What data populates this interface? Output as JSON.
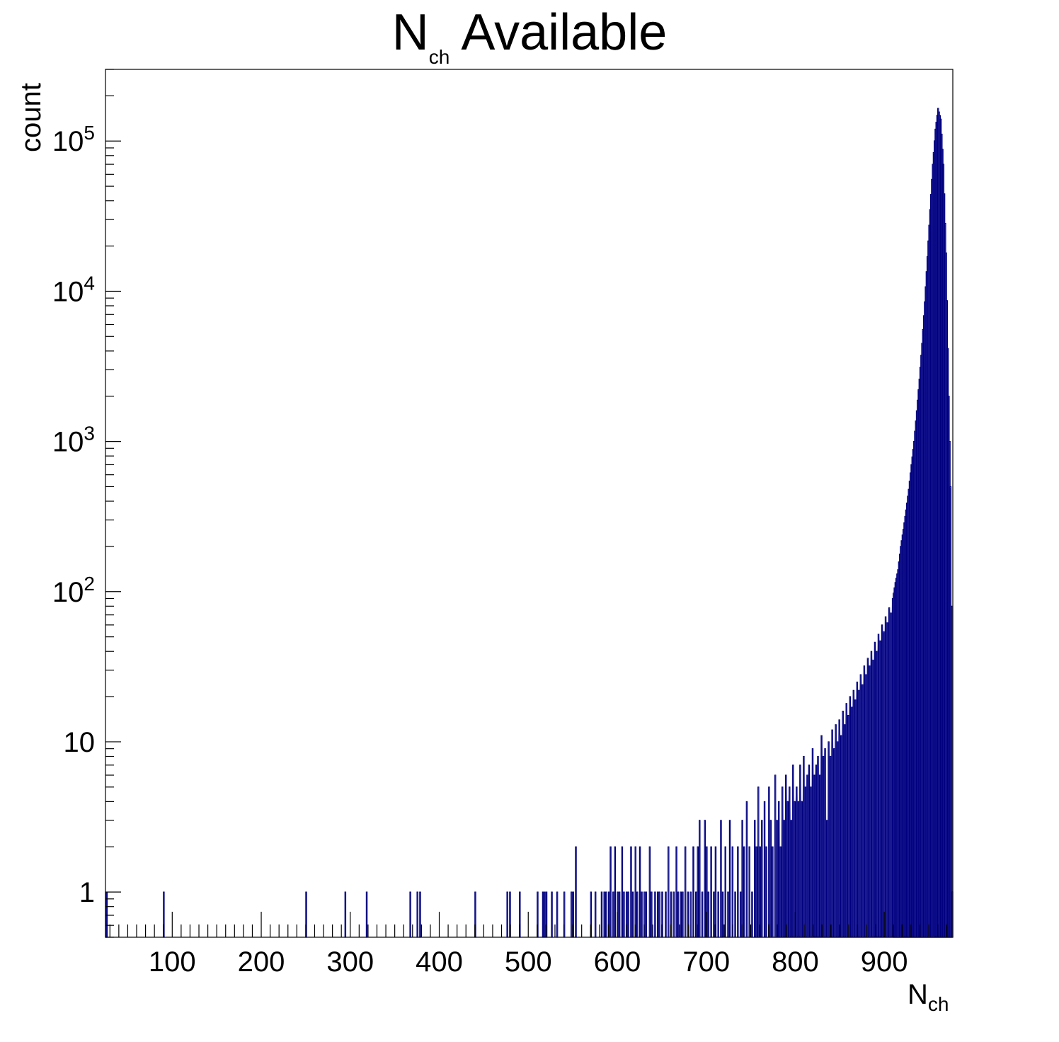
{
  "chart_data": {
    "type": "bar",
    "title": {
      "main": "N",
      "sub": "ch",
      "rest": " Available"
    },
    "xlabel": {
      "main": "N",
      "sub": "ch"
    },
    "ylabel": "count",
    "yscale": "log",
    "xlim": [
      25,
      977
    ],
    "ylim": [
      0.5,
      300000
    ],
    "x_ticks": [
      100,
      200,
      300,
      400,
      500,
      600,
      700,
      800,
      900
    ],
    "y_ticks": [
      {
        "value": 1,
        "base": "1",
        "exp": ""
      },
      {
        "value": 10,
        "base": "10",
        "exp": ""
      },
      {
        "value": 100,
        "base": "10",
        "exp": "2"
      },
      {
        "value": 1000,
        "base": "10",
        "exp": "3"
      },
      {
        "value": 10000,
        "base": "10",
        "exp": "4"
      },
      {
        "value": 100000,
        "base": "10",
        "exp": "5"
      }
    ],
    "colors": {
      "line": "#000080",
      "fill": "#ccccff"
    },
    "sparse_bins": [
      [
        25,
        1
      ],
      [
        26,
        1
      ],
      [
        90,
        1
      ],
      [
        250,
        1
      ],
      [
        294,
        1
      ],
      [
        318,
        1
      ],
      [
        367,
        1
      ],
      [
        375,
        1
      ],
      [
        378,
        1
      ],
      [
        440,
        1
      ],
      [
        476,
        1
      ],
      [
        479,
        1
      ],
      [
        490,
        1
      ],
      [
        510,
        1
      ],
      [
        516,
        1
      ],
      [
        518,
        1
      ],
      [
        520,
        1
      ],
      [
        526,
        1
      ],
      [
        532,
        1
      ],
      [
        540,
        1
      ],
      [
        548,
        1
      ],
      [
        550,
        1
      ],
      [
        553,
        2
      ],
      [
        570,
        1
      ],
      [
        575,
        1
      ],
      [
        582,
        1
      ],
      [
        585,
        1
      ],
      [
        587,
        1
      ],
      [
        590,
        1
      ],
      [
        592,
        2
      ],
      [
        595,
        1
      ],
      [
        597,
        2
      ],
      [
        600,
        1
      ],
      [
        602,
        1
      ],
      [
        605,
        2
      ],
      [
        607,
        1
      ],
      [
        610,
        1
      ],
      [
        612,
        1
      ],
      [
        615,
        2
      ],
      [
        617,
        1
      ],
      [
        620,
        2
      ],
      [
        622,
        1
      ],
      [
        625,
        2
      ],
      [
        627,
        1
      ],
      [
        630,
        1
      ],
      [
        632,
        1
      ],
      [
        636,
        2
      ],
      [
        638,
        1
      ],
      [
        642,
        1
      ],
      [
        645,
        1
      ],
      [
        647,
        1
      ],
      [
        650,
        1
      ],
      [
        654,
        1
      ],
      [
        657,
        2
      ],
      [
        660,
        1
      ],
      [
        663,
        1
      ],
      [
        666,
        2
      ],
      [
        668,
        1
      ],
      [
        671,
        1
      ],
      [
        673,
        1
      ],
      [
        676,
        2
      ],
      [
        679,
        1
      ],
      [
        682,
        1
      ],
      [
        685,
        2
      ],
      [
        688,
        1
      ],
      [
        690,
        2
      ],
      [
        692,
        3
      ],
      [
        695,
        1
      ],
      [
        698,
        3
      ],
      [
        700,
        2
      ],
      [
        702,
        1
      ],
      [
        705,
        2
      ],
      [
        708,
        1
      ],
      [
        710,
        2
      ],
      [
        713,
        1
      ],
      [
        716,
        3
      ],
      [
        718,
        1
      ],
      [
        721,
        2
      ],
      [
        724,
        1
      ],
      [
        726,
        3
      ],
      [
        729,
        2
      ],
      [
        732,
        1
      ],
      [
        735,
        2
      ],
      [
        738,
        1
      ],
      [
        740,
        3
      ],
      [
        742,
        2
      ],
      [
        745,
        4
      ],
      [
        748,
        2
      ],
      [
        751,
        1
      ],
      [
        754,
        3
      ],
      [
        756,
        2
      ],
      [
        758,
        5
      ],
      [
        760,
        2
      ],
      [
        762,
        3
      ],
      [
        765,
        4
      ],
      [
        767,
        2
      ],
      [
        770,
        5
      ],
      [
        772,
        3
      ],
      [
        774,
        2
      ],
      [
        777,
        6
      ],
      [
        779,
        3
      ],
      [
        781,
        4
      ],
      [
        783,
        2
      ],
      [
        785,
        5
      ],
      [
        787,
        3
      ],
      [
        789,
        6
      ],
      [
        791,
        4
      ],
      [
        793,
        5
      ],
      [
        795,
        3
      ],
      [
        797,
        7
      ],
      [
        799,
        4
      ],
      [
        801,
        5
      ],
      [
        803,
        4
      ],
      [
        805,
        7
      ],
      [
        807,
        4
      ],
      [
        809,
        8
      ],
      [
        811,
        5
      ],
      [
        813,
        6
      ],
      [
        815,
        7
      ],
      [
        817,
        5
      ],
      [
        819,
        9
      ],
      [
        821,
        6
      ],
      [
        823,
        7
      ],
      [
        825,
        8
      ],
      [
        827,
        6
      ],
      [
        829,
        11
      ],
      [
        831,
        8
      ],
      [
        833,
        9
      ],
      [
        835,
        3
      ],
      [
        837,
        10
      ],
      [
        839,
        8
      ],
      [
        841,
        12
      ],
      [
        843,
        9
      ],
      [
        845,
        13
      ],
      [
        847,
        10
      ],
      [
        849,
        14
      ],
      [
        851,
        11
      ],
      [
        853,
        16
      ],
      [
        855,
        13
      ],
      [
        857,
        18
      ],
      [
        859,
        15
      ],
      [
        861,
        20
      ],
      [
        863,
        17
      ],
      [
        865,
        22
      ],
      [
        867,
        19
      ],
      [
        869,
        25
      ],
      [
        871,
        22
      ],
      [
        873,
        28
      ],
      [
        875,
        24
      ],
      [
        877,
        32
      ],
      [
        879,
        28
      ],
      [
        881,
        36
      ],
      [
        883,
        32
      ],
      [
        885,
        40
      ],
      [
        887,
        35
      ],
      [
        889,
        46
      ],
      [
        891,
        40
      ],
      [
        893,
        52
      ],
      [
        895,
        47
      ],
      [
        897,
        60
      ],
      [
        899,
        54
      ],
      [
        901,
        68
      ],
      [
        903,
        62
      ],
      [
        905,
        78
      ],
      [
        907,
        72
      ]
    ],
    "dense_region": {
      "x_start": 909,
      "x_end": 977,
      "peak_x": 960,
      "peak_count": 165000,
      "anchor_points": [
        [
          909,
          90
        ],
        [
          912,
          115
        ],
        [
          915,
          140
        ],
        [
          918,
          200
        ],
        [
          921,
          260
        ],
        [
          924,
          350
        ],
        [
          927,
          480
        ],
        [
          930,
          700
        ],
        [
          933,
          1000
        ],
        [
          936,
          1600
        ],
        [
          939,
          2600
        ],
        [
          942,
          4500
        ],
        [
          945,
          8500
        ],
        [
          948,
          17000
        ],
        [
          951,
          35000
        ],
        [
          954,
          70000
        ],
        [
          957,
          120000
        ],
        [
          960,
          165000
        ],
        [
          963,
          140000
        ],
        [
          966,
          70000
        ],
        [
          969,
          18000
        ],
        [
          972,
          2000
        ],
        [
          974,
          500
        ],
        [
          975,
          80
        ],
        [
          976,
          1
        ]
      ]
    }
  }
}
